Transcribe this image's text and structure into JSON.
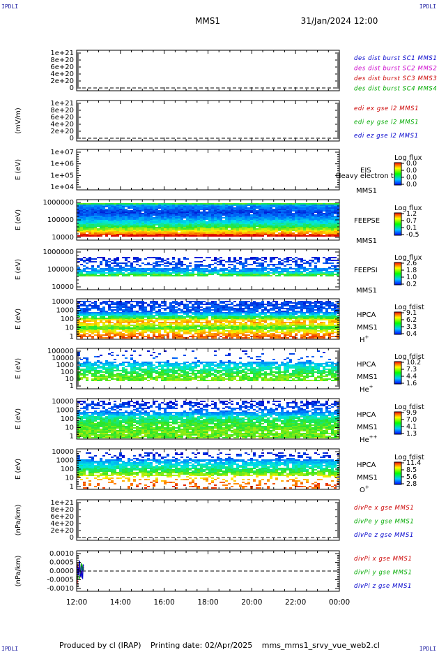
{
  "corner_label": "IPDLI",
  "header": {
    "title": "MMS1",
    "datetime": "31/Jan/2024 12:00"
  },
  "footer": {
    "produced": "Produced by cl (IRAP)",
    "printing": "Printing date: 02/Apr/2025",
    "file": "mms_mms1_srvy_vue_web2.cl"
  },
  "x_axis": {
    "ticks": [
      "12:00",
      "14:00",
      "16:00",
      "18:00",
      "20:00",
      "22:00",
      "00:00"
    ]
  },
  "chart_data": [
    {
      "type": "line",
      "id": "dis",
      "ylabel": "",
      "yticks": [
        "1e+21",
        "8e+20",
        "6e+20",
        "4e+20",
        "2e+20",
        "0"
      ],
      "zero_line": true,
      "legend": [
        {
          "text": "des dist burst SC1 MMS1",
          "color": "#0000cc"
        },
        {
          "text": "des dist burst SC2 MMS2",
          "color": "#cc00cc"
        },
        {
          "text": "des dist burst SC3 MMS3",
          "color": "#cc0000"
        },
        {
          "text": "des dist burst SC4 MMS4",
          "color": "#00aa00"
        }
      ]
    },
    {
      "type": "line",
      "id": "edi",
      "ylabel": "(mV/m)",
      "yticks": [
        "1e+21",
        "8e+20",
        "6e+20",
        "4e+20",
        "2e+20",
        "0"
      ],
      "zero_line": true,
      "legend": [
        {
          "text": "edi ex gse l2 MMS1",
          "color": "#cc0000"
        },
        {
          "text": "edi ey gse l2 MMS1",
          "color": "#00aa00"
        },
        {
          "text": "edi ez gse l2 MMS1",
          "color": "#0000cc"
        }
      ]
    },
    {
      "type": "heatmap",
      "id": "eis",
      "ylabel": "E (eV)",
      "yticks": [
        "1e+07",
        "1e+06",
        "1e+05",
        "1e+04"
      ],
      "labels": [
        "EIS",
        "Heavy electron to",
        "MMS1"
      ],
      "cbar_title": "Log flux",
      "cbar_ticks": [
        "0.0",
        "0.0",
        "0.0",
        "0.0"
      ],
      "fill": "none"
    },
    {
      "type": "heatmap",
      "id": "feepse",
      "ylabel": "E (eV)",
      "yticks": [
        "1000000",
        "100000",
        "10000"
      ],
      "labels": [
        "FEEPSE",
        "MMS1"
      ],
      "cbar_title": "Log flux",
      "cbar_ticks": [
        "1.2",
        "0.7",
        "0.1",
        "-0.5"
      ],
      "fill": "feeps_e"
    },
    {
      "type": "heatmap",
      "id": "feepsi",
      "ylabel": "E (eV)",
      "yticks": [
        "1000000",
        "100000",
        "10000"
      ],
      "labels": [
        "FEEPSI",
        "MMS1"
      ],
      "cbar_title": "Log flux",
      "cbar_ticks": [
        "2.6",
        "1.8",
        "1.0",
        "0.2"
      ],
      "fill": "feeps_i"
    },
    {
      "type": "heatmap",
      "id": "hpca_h",
      "ylabel": "E (eV)",
      "yticks": [
        "10000",
        "1000",
        "100",
        "10",
        "1"
      ],
      "labels": [
        "HPCA",
        "MMS1"
      ],
      "species": "H",
      "species_sup": "+",
      "cbar_title": "Log fdist",
      "cbar_ticks": [
        "9.1",
        "6.2",
        "3.3",
        "0.4"
      ],
      "fill": "hpca_h"
    },
    {
      "type": "heatmap",
      "id": "hpca_he",
      "ylabel": "E (eV)",
      "yticks": [
        "100000",
        "10000",
        "1000",
        "100",
        "10",
        "1"
      ],
      "labels": [
        "HPCA",
        "MMS1"
      ],
      "species": "He",
      "species_sup": "+",
      "cbar_title": "Log fdist",
      "cbar_ticks": [
        "10.2",
        "7.3",
        "4.4",
        "1.6"
      ],
      "fill": "hpca_he"
    },
    {
      "type": "heatmap",
      "id": "hpca_hepp",
      "ylabel": "E (eV)",
      "yticks": [
        "10000",
        "1000",
        "100",
        "10",
        "1"
      ],
      "labels": [
        "HPCA",
        "MMS1"
      ],
      "species": "He",
      "species_sup": "++",
      "cbar_title": "Log fdist",
      "cbar_ticks": [
        "9.9",
        "7.0",
        "4.1",
        "1.3"
      ],
      "fill": "hpca_hepp"
    },
    {
      "type": "heatmap",
      "id": "hpca_o",
      "ylabel": "E (eV)",
      "yticks": [
        "10000",
        "1000",
        "100",
        "10",
        "1"
      ],
      "labels": [
        "HPCA",
        "MMS1"
      ],
      "species": "O",
      "species_sup": "+",
      "cbar_title": "Log fdist",
      "cbar_ticks": [
        "11.4",
        "8.5",
        "5.6",
        "2.8"
      ],
      "fill": "hpca_o"
    },
    {
      "type": "line",
      "id": "divpe",
      "ylabel": "(nPa/km)",
      "yticks": [
        "1e+21",
        "8e+20",
        "6e+20",
        "4e+20",
        "2e+20",
        "0"
      ],
      "zero_line": true,
      "legend": [
        {
          "text": "divPe x gse MMS1",
          "color": "#cc0000"
        },
        {
          "text": "divPe y gse MMS1",
          "color": "#00aa00"
        },
        {
          "text": "divPe z gse MMS1",
          "color": "#0000cc"
        }
      ]
    },
    {
      "type": "line",
      "id": "divpi",
      "ylabel": "(nPa/km)",
      "yticks": [
        "0.0010",
        "0.0005",
        "0.0000",
        "-0.0005",
        "-0.0010"
      ],
      "zero_line": true,
      "data_span_hours": [
        0.0,
        0.33
      ],
      "legend": [
        {
          "text": "divPi x gse MMS1",
          "color": "#cc0000"
        },
        {
          "text": "divPi y gse MMS1",
          "color": "#00aa00"
        },
        {
          "text": "divPi z gse MMS1",
          "color": "#0000cc"
        }
      ]
    }
  ]
}
